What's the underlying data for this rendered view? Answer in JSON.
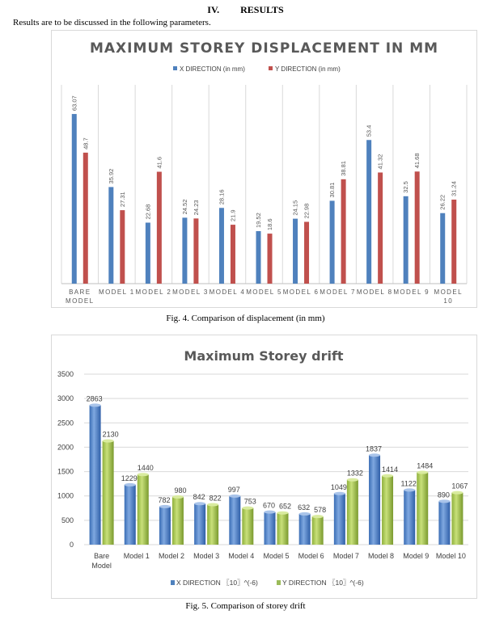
{
  "section": {
    "number": "IV.",
    "title": "RESULTS"
  },
  "intro_text": "Results are to be discussed in the following parameters.",
  "captions": {
    "fig4": "Fig. 4. Comparison of displacement (in mm)",
    "fig5": "Fig. 5. Comparison of storey drift"
  },
  "chart_data": [
    {
      "type": "bar",
      "title": "MAXIMUM STOREY DISPLACEMENT IN MM",
      "categories": [
        "BARE MODEL",
        "MODEL 1",
        "MODEL 2",
        "MODEL 3",
        "MODEL 4",
        "MODEL 5",
        "MODEL 6",
        "MODEL 7",
        "MODEL 8",
        "MODEL 9",
        "MODEL 10"
      ],
      "series": [
        {
          "name": "X DIRECTION (in mm)",
          "color": "#4f81bd",
          "values": [
            63.07,
            35.92,
            22.68,
            24.52,
            28.16,
            19.52,
            24.15,
            30.81,
            53.4,
            32.5,
            26.22
          ]
        },
        {
          "name": "Y DIRECTION (in mm)",
          "color": "#c0504d",
          "values": [
            48.7,
            27.31,
            41.6,
            24.23,
            21.9,
            18.6,
            22.98,
            38.81,
            41.32,
            41.68,
            31.24
          ]
        }
      ],
      "data_labels": {
        "x": [
          "63.07",
          "35.92",
          "22.68",
          "24.52",
          "28.16",
          "19.52",
          "24.15",
          "30.81",
          "53.4",
          "32.5",
          "26.22"
        ],
        "y": [
          "48.7",
          "27.31",
          "41.6",
          "24.23",
          "21.9",
          "18.6",
          "22.98",
          "38.81",
          "41.32",
          "41.68",
          "31.24"
        ]
      },
      "ylim": [
        0,
        70
      ],
      "grid": "vertical",
      "legend": "top"
    },
    {
      "type": "bar",
      "title": "Maximum Storey drift",
      "categories": [
        "Bare Model",
        "Model 1",
        "Model 2",
        "Model 3",
        "Model 4",
        "Model 5",
        "Model 6",
        "Model 7",
        "Model 8",
        "Model 9",
        "Model 10"
      ],
      "series": [
        {
          "name": "X DIRECTION 〖10〗^(-6)",
          "color": "#4f81bd",
          "values": [
            2863,
            1229,
            782,
            842,
            997,
            670,
            632,
            1049,
            1837,
            1122,
            890
          ]
        },
        {
          "name": "Y DIRECTION  〖10〗^(-6)",
          "color": "#9bbb59",
          "values": [
            2130,
            1440,
            980,
            822,
            753,
            652,
            578,
            1332,
            1414,
            1484,
            1067
          ]
        }
      ],
      "y_ticks": [
        "0",
        "500",
        "1000",
        "1500",
        "2000",
        "2500",
        "3000",
        "3500"
      ],
      "ylim": [
        0,
        3500
      ],
      "grid": "horizontal",
      "legend": "bottom",
      "style": "3d-cylinder"
    }
  ]
}
